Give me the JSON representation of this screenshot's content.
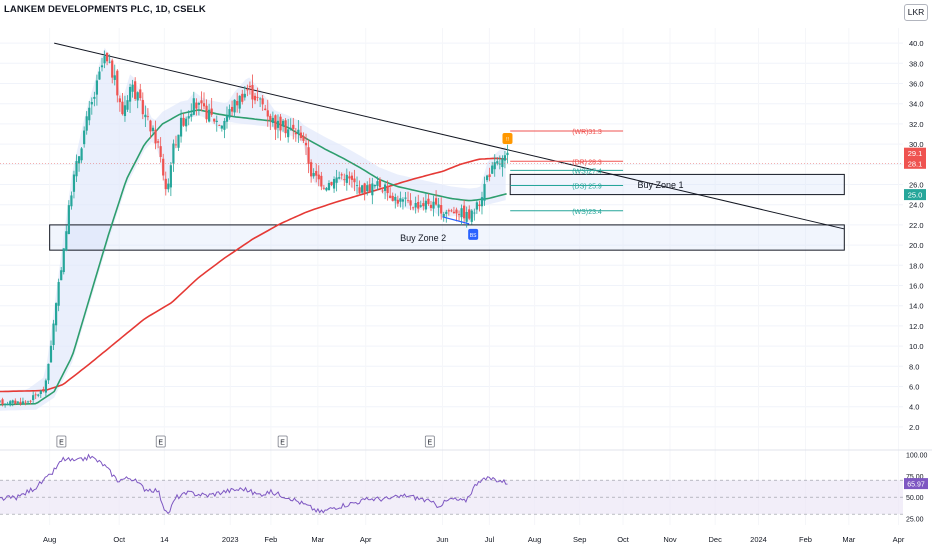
{
  "header": {
    "title": "LANKEM DEVELOPMENTS PLC, 1D, CSELK",
    "currency": "LKR"
  },
  "colors": {
    "up": "#26a69a",
    "down": "#ef5350",
    "ema_fast": "#2e9e6e",
    "ema_slow": "#e53935",
    "trend": "#131722",
    "zone": "#d8e3f8",
    "rsi": "#7e57c2",
    "rsi_band": "#ede7f6",
    "resistance": "#ef5350",
    "support": "#26a69a",
    "marker": "#2962ff",
    "warn": "#ff9800"
  },
  "chart_data": [
    {
      "type": "candlestick",
      "title": "",
      "ylim": [
        1,
        41
      ],
      "x_ticks": [
        "Aug",
        "Oct",
        "14",
        "2023",
        "Feb",
        "Mar",
        "Apr",
        "Jun",
        "Jul",
        "Aug",
        "Sep",
        "Oct",
        "Nov",
        "Dec",
        "2024",
        "Feb",
        "Mar",
        "Apr"
      ],
      "y_ticks": [
        "40.0",
        "38.0",
        "36.0",
        "34.0",
        "32.0",
        "30.0",
        "28.0",
        "26.0",
        "24.0",
        "22.0",
        "20.0",
        "18.0",
        "16.0",
        "14.0",
        "12.0",
        "10.0",
        "8.0",
        "6.0",
        "4.0",
        "2.0"
      ],
      "last_price_labels": [
        {
          "text": "29.1",
          "value": 29.1,
          "color": "#ef5350"
        },
        {
          "text": "28.1",
          "value": 28.1,
          "color": "#ef5350"
        },
        {
          "text": "25.0",
          "value": 25.0,
          "color": "#26a69a"
        }
      ],
      "zones": [
        {
          "label": "Buy Zone 1",
          "low": 25.0,
          "high": 27.0,
          "start": 0.565,
          "end": 0.935
        },
        {
          "label": "Buy Zone 2",
          "low": 19.5,
          "high": 22.0,
          "start": 0.055,
          "end": 0.935
        }
      ],
      "levels": [
        {
          "label": "(WR)",
          "value": 31.3,
          "text": "31.3",
          "kind": "resistance"
        },
        {
          "label": "(DR)",
          "value": 28.3,
          "text": "28.3",
          "kind": "resistance"
        },
        {
          "label": "(WS)",
          "value": 27.4,
          "text": "27.4",
          "kind": "support"
        },
        {
          "label": "(DS)",
          "value": 25.9,
          "text": "25.9",
          "kind": "support"
        },
        {
          "label": "(WS)",
          "value": 23.4,
          "text": "23.4",
          "kind": "support"
        }
      ],
      "trendline": {
        "from": [
          0.06,
          40.0
        ],
        "to": [
          0.935,
          21.6
        ]
      },
      "events": [
        {
          "label": "E",
          "at": 0.068
        },
        {
          "label": "E",
          "at": 0.178
        },
        {
          "label": "E",
          "at": 0.313
        },
        {
          "label": "E",
          "at": 0.476
        }
      ],
      "signal_marker": {
        "label": "BS",
        "at": 0.524,
        "value": 21.8
      },
      "warn_marker": {
        "label": "!!",
        "at": 0.562,
        "value": 30.5
      },
      "price_keypoints": [
        [
          0.0,
          4.4
        ],
        [
          0.03,
          4.5
        ],
        [
          0.05,
          5.8
        ],
        [
          0.065,
          16
        ],
        [
          0.08,
          26
        ],
        [
          0.095,
          32
        ],
        [
          0.105,
          35
        ],
        [
          0.115,
          38.5
        ],
        [
          0.125,
          37
        ],
        [
          0.135,
          33
        ],
        [
          0.145,
          36
        ],
        [
          0.16,
          33
        ],
        [
          0.175,
          30
        ],
        [
          0.185,
          25
        ],
        [
          0.19,
          29
        ],
        [
          0.2,
          32
        ],
        [
          0.215,
          34
        ],
        [
          0.23,
          33
        ],
        [
          0.245,
          32
        ],
        [
          0.26,
          34
        ],
        [
          0.275,
          35.5
        ],
        [
          0.29,
          34
        ],
        [
          0.305,
          32
        ],
        [
          0.32,
          31.5
        ],
        [
          0.335,
          31
        ],
        [
          0.345,
          27
        ],
        [
          0.36,
          26
        ],
        [
          0.38,
          27
        ],
        [
          0.4,
          25.5
        ],
        [
          0.42,
          26
        ],
        [
          0.44,
          24.5
        ],
        [
          0.46,
          24
        ],
        [
          0.475,
          24.2
        ],
        [
          0.49,
          23.3
        ],
        [
          0.505,
          23.5
        ],
        [
          0.52,
          22.8
        ],
        [
          0.53,
          24
        ],
        [
          0.54,
          27
        ],
        [
          0.55,
          28
        ],
        [
          0.562,
          28.7
        ]
      ],
      "ema_fast_keypoints": [
        [
          0.0,
          4.2
        ],
        [
          0.04,
          4.3
        ],
        [
          0.06,
          5.5
        ],
        [
          0.08,
          9
        ],
        [
          0.1,
          15
        ],
        [
          0.12,
          21
        ],
        [
          0.14,
          26.5
        ],
        [
          0.16,
          30
        ],
        [
          0.18,
          32
        ],
        [
          0.2,
          33
        ],
        [
          0.22,
          33.4
        ],
        [
          0.24,
          33
        ],
        [
          0.26,
          32.7
        ],
        [
          0.28,
          32.5
        ],
        [
          0.3,
          32.3
        ],
        [
          0.32,
          31.6
        ],
        [
          0.34,
          30.5
        ],
        [
          0.36,
          29.5
        ],
        [
          0.38,
          28.6
        ],
        [
          0.4,
          27.6
        ],
        [
          0.42,
          26.5
        ],
        [
          0.44,
          25.8
        ],
        [
          0.46,
          25.4
        ],
        [
          0.48,
          25
        ],
        [
          0.5,
          24.6
        ],
        [
          0.52,
          24.4
        ],
        [
          0.54,
          24.6
        ],
        [
          0.562,
          25.1
        ]
      ],
      "ema_slow_keypoints": [
        [
          0.0,
          5.5
        ],
        [
          0.05,
          5.6
        ],
        [
          0.07,
          6.2
        ],
        [
          0.1,
          8.3
        ],
        [
          0.13,
          10.5
        ],
        [
          0.16,
          12.7
        ],
        [
          0.19,
          14.3
        ],
        [
          0.22,
          16.8
        ],
        [
          0.25,
          18.8
        ],
        [
          0.28,
          20.6
        ],
        [
          0.31,
          22.1
        ],
        [
          0.34,
          23.3
        ],
        [
          0.37,
          24.2
        ],
        [
          0.4,
          25
        ],
        [
          0.43,
          25.8
        ],
        [
          0.46,
          26.6
        ],
        [
          0.49,
          27.3
        ],
        [
          0.51,
          28
        ],
        [
          0.53,
          28.5
        ],
        [
          0.55,
          28.6
        ],
        [
          0.562,
          28.5
        ]
      ]
    },
    {
      "type": "line",
      "title": "",
      "ylim": [
        22,
        102
      ],
      "y_ticks": [
        "100.00",
        "75.00",
        "50.00",
        "25.00"
      ],
      "last_value_label": "65.97",
      "band": [
        30,
        70
      ],
      "keypoints": [
        [
          0.0,
          48
        ],
        [
          0.02,
          50
        ],
        [
          0.04,
          62
        ],
        [
          0.055,
          75
        ],
        [
          0.07,
          95
        ],
        [
          0.085,
          92
        ],
        [
          0.1,
          98
        ],
        [
          0.115,
          88
        ],
        [
          0.13,
          70
        ],
        [
          0.145,
          73
        ],
        [
          0.16,
          60
        ],
        [
          0.175,
          58
        ],
        [
          0.185,
          28
        ],
        [
          0.195,
          50
        ],
        [
          0.21,
          55
        ],
        [
          0.23,
          52
        ],
        [
          0.25,
          57
        ],
        [
          0.27,
          60
        ],
        [
          0.285,
          53
        ],
        [
          0.3,
          56
        ],
        [
          0.32,
          50
        ],
        [
          0.34,
          40
        ],
        [
          0.355,
          32
        ],
        [
          0.37,
          38
        ],
        [
          0.39,
          43
        ],
        [
          0.41,
          48
        ],
        [
          0.43,
          48
        ],
        [
          0.45,
          52
        ],
        [
          0.47,
          47
        ],
        [
          0.485,
          40
        ],
        [
          0.5,
          48
        ],
        [
          0.515,
          45
        ],
        [
          0.53,
          70
        ],
        [
          0.545,
          72
        ],
        [
          0.562,
          67
        ]
      ]
    }
  ]
}
